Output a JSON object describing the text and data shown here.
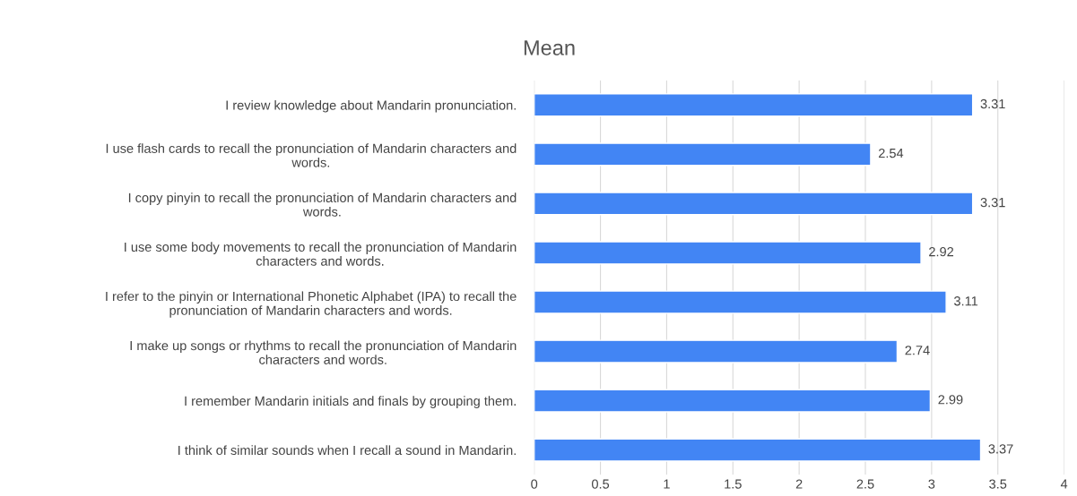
{
  "chart_data": {
    "type": "bar",
    "orientation": "horizontal",
    "title": "Mean",
    "categories": [
      "I review knowledge about Mandarin pronunciation.",
      "I use flash cards to recall the pronunciation of Mandarin characters and\nwords.",
      "I copy pinyin to recall the pronunciation of Mandarin characters and\nwords.",
      "I use some body movements to recall the pronunciation of Mandarin\ncharacters and words.",
      "I refer to the pinyin or International Phonetic Alphabet (IPA) to recall the\npronunciation of Mandarin characters and words.",
      "I make up songs or rhythms to recall the pronunciation of Mandarin\ncharacters and words.",
      "I remember Mandarin initials and finals by grouping them.",
      "I think of similar sounds when I recall a sound in Mandarin."
    ],
    "values": [
      3.31,
      2.54,
      3.31,
      2.92,
      3.11,
      2.74,
      2.99,
      3.37
    ],
    "color": "#4285f4",
    "data_labels": true,
    "xlim": [
      0,
      4
    ],
    "xticks": [
      0,
      0.5,
      1,
      1.5,
      2,
      2.5,
      3,
      3.5,
      4
    ],
    "grid": "x",
    "legend": false
  }
}
